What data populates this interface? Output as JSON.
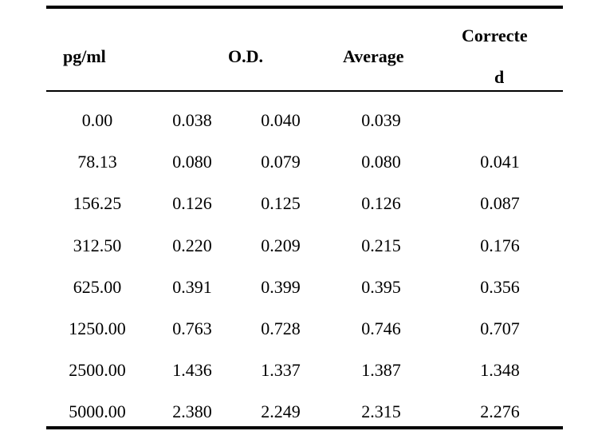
{
  "table": {
    "headers": {
      "concentration": "pg/ml",
      "od": "O.D.",
      "average": "Average",
      "corrected_line1": "Correcte",
      "corrected_line2": "d"
    },
    "rows": [
      [
        "0.00",
        "0.038",
        "0.040",
        "0.039",
        ""
      ],
      [
        "78.13",
        "0.080",
        "0.079",
        "0.080",
        "0.041"
      ],
      [
        "156.25",
        "0.126",
        "0.125",
        "0.126",
        "0.087"
      ],
      [
        "312.50",
        "0.220",
        "0.209",
        "0.215",
        "0.176"
      ],
      [
        "625.00",
        "0.391",
        "0.399",
        "0.395",
        "0.356"
      ],
      [
        "1250.00",
        "0.763",
        "0.728",
        "0.746",
        "0.707"
      ],
      [
        "2500.00",
        "1.436",
        "1.337",
        "1.387",
        "1.348"
      ],
      [
        "5000.00",
        "2.380",
        "2.249",
        "2.315",
        "2.276"
      ]
    ]
  }
}
